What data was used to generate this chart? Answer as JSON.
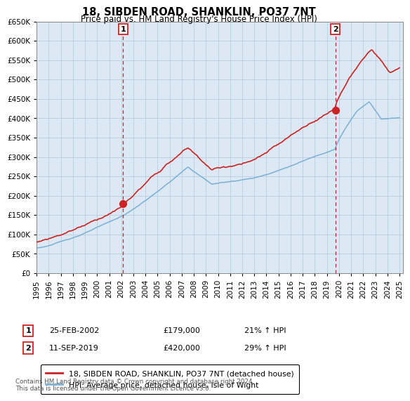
{
  "title": "18, SIBDEN ROAD, SHANKLIN, PO37 7NT",
  "subtitle": "Price paid vs. HM Land Registry's House Price Index (HPI)",
  "ylim": [
    0,
    650000
  ],
  "yticks": [
    0,
    50000,
    100000,
    150000,
    200000,
    250000,
    300000,
    350000,
    400000,
    450000,
    500000,
    550000,
    600000,
    650000
  ],
  "x_start_year": 1995,
  "x_end_year": 2025,
  "sale1_year": 2002.15,
  "sale1_price": 179000,
  "sale1_label": "1",
  "sale2_year": 2019.69,
  "sale2_price": 420000,
  "sale2_label": "2",
  "hpi_color": "#7bafd4",
  "price_color": "#cc2222",
  "chart_bg_color": "#dce9f5",
  "annotation1_date": "25-FEB-2002",
  "annotation1_price": "£179,000",
  "annotation1_hpi": "21% ↑ HPI",
  "annotation2_date": "11-SEP-2019",
  "annotation2_price": "£420,000",
  "annotation2_hpi": "29% ↑ HPI",
  "legend_label1": "18, SIBDEN ROAD, SHANKLIN, PO37 7NT (detached house)",
  "legend_label2": "HPI: Average price, detached house, Isle of Wight",
  "footnote": "Contains HM Land Registry data © Crown copyright and database right 2024.\nThis data is licensed under the Open Government Licence v3.0.",
  "background_color": "#ffffff",
  "grid_color": "#b8cfe0"
}
